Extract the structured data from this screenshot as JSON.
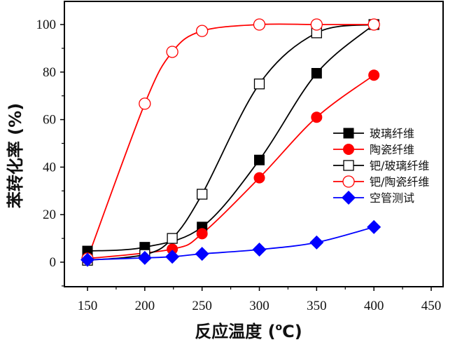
{
  "chart_data": {
    "type": "line",
    "title": "",
    "xlabel": "反应温度 (°C)",
    "xlabel_main": "反应温度 (",
    "xlabel_sup": "o",
    "xlabel_tail": "C)",
    "ylabel": "苯转化率 (%)",
    "xlim": [
      130,
      460
    ],
    "ylim": [
      -10,
      110
    ],
    "xticks": [
      150,
      200,
      250,
      300,
      350,
      400,
      450
    ],
    "yticks": [
      0,
      20,
      40,
      60,
      80,
      100
    ],
    "xtick_labels": [
      "150",
      "200",
      "250",
      "300",
      "350",
      "400",
      "450"
    ],
    "ytick_labels": [
      "0",
      "20",
      "40",
      "60",
      "80",
      "100"
    ],
    "grid": false,
    "legend_position": "right",
    "series": [
      {
        "name": "玻璃纤维",
        "color": "#000000",
        "marker": "square-filled",
        "x": [
          150,
          200,
          250,
          300,
          350,
          400
        ],
        "values": [
          4.7,
          6.3,
          14.8,
          43,
          79.5,
          100
        ]
      },
      {
        "name": "陶瓷纤维",
        "color": "#ff0000",
        "marker": "circle-filled",
        "x": [
          150,
          224,
          250,
          300,
          350,
          400
        ],
        "values": [
          1.5,
          5.5,
          12,
          35.5,
          61,
          78.7
        ]
      },
      {
        "name": "钯/玻璃纤维",
        "color": "#000000",
        "marker": "square-open",
        "x": [
          150,
          200,
          224,
          250,
          300,
          350,
          400
        ],
        "values": [
          0.8,
          3.2,
          10,
          28.6,
          75,
          96.5,
          100
        ]
      },
      {
        "name": "钯/陶瓷纤维",
        "color": "#ff0000",
        "marker": "circle-open",
        "x": [
          150,
          200,
          224,
          250,
          300,
          350,
          400
        ],
        "values": [
          1.5,
          66.7,
          88.5,
          97.3,
          100,
          100,
          100
        ]
      },
      {
        "name": "空管测试",
        "color": "#0000ff",
        "marker": "diamond-filled",
        "x": [
          150,
          200,
          224,
          250,
          300,
          350,
          400
        ],
        "values": [
          1,
          1.8,
          2.3,
          3.5,
          5.3,
          8.3,
          14.8
        ]
      }
    ]
  }
}
